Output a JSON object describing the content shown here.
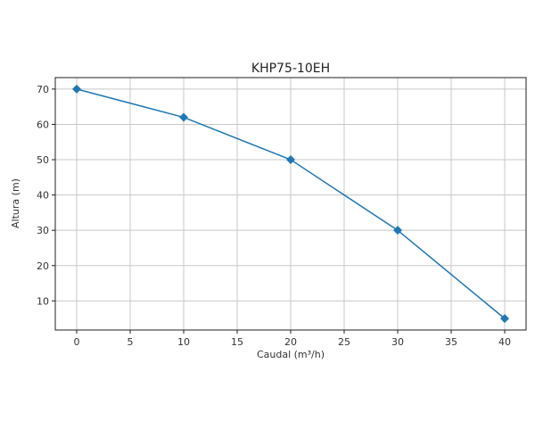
{
  "chart_data": {
    "type": "line",
    "title": "KHP75-10EH",
    "xlabel": "Caudal (m³/h)",
    "ylabel": "Altura (m)",
    "x": [
      0,
      10,
      20,
      30,
      40
    ],
    "series": [
      {
        "name": "KHP75-10EH",
        "values": [
          70,
          62,
          50,
          30,
          5
        ],
        "color": "#1f77b4",
        "marker": "diamond"
      }
    ],
    "xticks": [
      0,
      5,
      10,
      15,
      20,
      25,
      30,
      35,
      40
    ],
    "yticks": [
      10,
      20,
      30,
      40,
      50,
      60,
      70
    ],
    "xlim": [
      -2,
      42
    ],
    "ylim": [
      1.75,
      73.25
    ],
    "grid": true,
    "legend": false
  }
}
